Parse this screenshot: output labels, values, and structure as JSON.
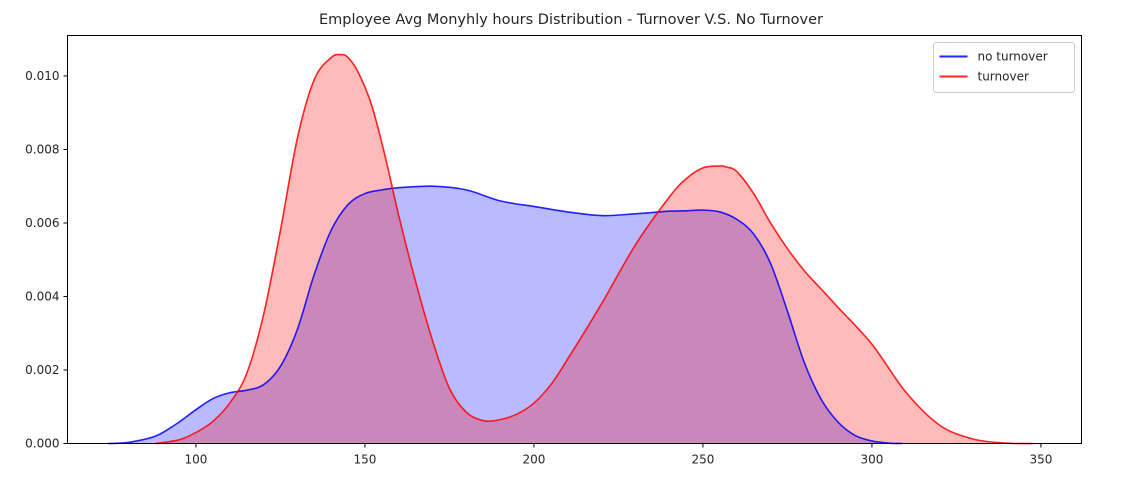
{
  "chart_data": {
    "type": "area",
    "title": "Employee Avg Monyhly hours Distribution - Turnover V.S. No Turnover",
    "xlabel": "",
    "ylabel": "",
    "xlim": [
      62,
      362
    ],
    "ylim": [
      0,
      0.0111
    ],
    "x_ticks": [
      100,
      150,
      200,
      250,
      300,
      350
    ],
    "x_tick_labels": [
      "100",
      "150",
      "200",
      "250",
      "300",
      "350"
    ],
    "y_ticks": [
      0.0,
      0.002,
      0.004,
      0.006,
      0.008,
      0.01
    ],
    "y_tick_labels": [
      "0.000",
      "0.002",
      "0.004",
      "0.006",
      "0.008",
      "0.010"
    ],
    "grid": false,
    "legend_position": "top-right",
    "series": [
      {
        "name": "no turnover",
        "color": "#0000ff",
        "fill": "#bbbbff",
        "x": [
          74,
          80,
          88,
          94,
          100,
          105,
          110,
          115,
          120,
          125,
          130,
          135,
          140,
          145,
          150,
          155,
          160,
          170,
          180,
          190,
          200,
          210,
          220,
          230,
          240,
          245,
          250,
          255,
          260,
          265,
          270,
          275,
          280,
          285,
          290,
          295,
          300,
          305,
          309
        ],
        "y": [
          0.0,
          3e-05,
          0.0002,
          0.00052,
          0.00092,
          0.00122,
          0.00138,
          0.00145,
          0.0016,
          0.0021,
          0.0031,
          0.0046,
          0.0058,
          0.0065,
          0.0068,
          0.0069,
          0.00696,
          0.007,
          0.0069,
          0.0066,
          0.00645,
          0.0063,
          0.0062,
          0.00625,
          0.00632,
          0.00633,
          0.00635,
          0.0063,
          0.0061,
          0.0057,
          0.0049,
          0.0036,
          0.0022,
          0.0012,
          0.00058,
          0.00022,
          7e-05,
          1e-05,
          0.0
        ]
      },
      {
        "name": "turnover",
        "color": "#ff0000",
        "fill": "#ffbbbb",
        "x": [
          88,
          95,
          100,
          105,
          110,
          115,
          120,
          125,
          130,
          135,
          140,
          143,
          145,
          148,
          152,
          156,
          160,
          165,
          170,
          175,
          180,
          185,
          190,
          195,
          200,
          205,
          210,
          220,
          230,
          240,
          245,
          250,
          255,
          257,
          260,
          265,
          270,
          275,
          280,
          285,
          290,
          300,
          310,
          320,
          330,
          340,
          348
        ],
        "y": [
          0.0,
          0.0001,
          0.0003,
          0.0006,
          0.0011,
          0.0019,
          0.0035,
          0.0058,
          0.0083,
          0.0099,
          0.0105,
          0.01058,
          0.0105,
          0.0101,
          0.0092,
          0.0078,
          0.0062,
          0.0044,
          0.0028,
          0.0015,
          0.00085,
          0.00062,
          0.00065,
          0.0008,
          0.0011,
          0.0016,
          0.0023,
          0.0038,
          0.0054,
          0.0067,
          0.0072,
          0.0075,
          0.00755,
          0.00752,
          0.0074,
          0.0068,
          0.006,
          0.0053,
          0.0047,
          0.0042,
          0.0037,
          0.0027,
          0.0014,
          0.0005,
          0.00012,
          1e-05,
          0.0
        ]
      }
    ]
  }
}
